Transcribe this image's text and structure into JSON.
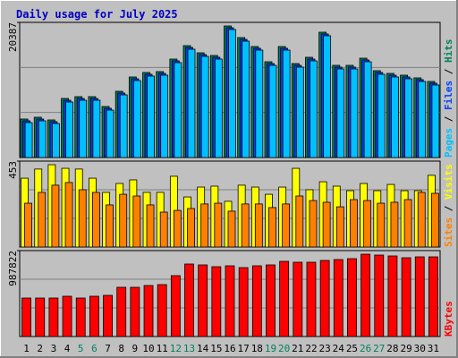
{
  "chart_data": [
    {
      "type": "bar",
      "title": "Daily usage for July 2025",
      "title_color": "#0000c0",
      "ylim": [
        0,
        20387
      ],
      "yticks": [
        20387
      ],
      "legend_separator": " / ",
      "series": [
        {
          "name": "Hits",
          "color": "#00805c",
          "values": [
            5806,
            6076,
            5671,
            8911,
            9181,
            9181,
            7696,
            9991,
            12151,
            12826,
            12961,
            14851,
            16876,
            15797,
            15392,
            19847,
            18092,
            16742,
            14446,
            16742,
            14176,
            15121,
            18902,
            13906,
            13906,
            14986,
            13096,
            12691,
            12421,
            12016,
            11476
          ]
        },
        {
          "name": "Files",
          "color": "#0040ff",
          "values": [
            5536,
            5806,
            5401,
            8641,
            8911,
            8911,
            7426,
            9721,
            11881,
            12556,
            12691,
            14581,
            16606,
            15527,
            15122,
            19577,
            17822,
            16472,
            14176,
            16472,
            13906,
            14851,
            18632,
            13636,
            13636,
            14716,
            12826,
            12421,
            12151,
            11746,
            11206
          ]
        },
        {
          "name": "Pages",
          "color": "#00c0ff",
          "values": [
            5266,
            5536,
            5131,
            8371,
            8641,
            8641,
            7156,
            9451,
            11611,
            12286,
            12421,
            14311,
            16336,
            15257,
            14852,
            19307,
            17552,
            16202,
            13906,
            16202,
            13636,
            14581,
            18362,
            13366,
            13366,
            14446,
            12556,
            12151,
            11881,
            11476,
            10936
          ]
        }
      ]
    },
    {
      "type": "bar",
      "ylim": [
        0,
        453
      ],
      "yticks": [
        453
      ],
      "legend_separator": " / ",
      "series": [
        {
          "name": "Visits",
          "color": "#ffff00",
          "values": [
            363,
            411,
            434,
            415,
            411,
            363,
            288,
            335,
            354,
            288,
            288,
            373,
            264,
            316,
            321,
            241,
            326,
            316,
            278,
            316,
            415,
            302,
            344,
            321,
            297,
            335,
            297,
            330,
            297,
            297,
            378
          ]
        },
        {
          "name": "Sites",
          "color": "#ff8000",
          "values": [
            231,
            288,
            326,
            340,
            302,
            288,
            222,
            278,
            269,
            222,
            184,
            193,
            203,
            227,
            231,
            189,
            227,
            227,
            208,
            227,
            269,
            245,
            236,
            212,
            250,
            245,
            231,
            236,
            250,
            288,
            283
          ]
        }
      ]
    },
    {
      "type": "bar",
      "ylim": [
        0,
        987822
      ],
      "yticks": [
        987822
      ],
      "categories": [
        "1",
        "2",
        "3",
        "4",
        "5",
        "6",
        "7",
        "8",
        "9",
        "10",
        "11",
        "12",
        "13",
        "14",
        "15",
        "16",
        "17",
        "18",
        "19",
        "20",
        "21",
        "22",
        "23",
        "24",
        "25",
        "26",
        "27",
        "28",
        "29",
        "30",
        "31"
      ],
      "category_colors": [
        "#000000",
        "#000000",
        "#000000",
        "#000000",
        "#00805c",
        "#00805c",
        "#000000",
        "#000000",
        "#000000",
        "#000000",
        "#000000",
        "#00805c",
        "#00805c",
        "#000000",
        "#000000",
        "#000000",
        "#000000",
        "#000000",
        "#00805c",
        "#00805c",
        "#000000",
        "#000000",
        "#000000",
        "#000000",
        "#000000",
        "#00805c",
        "#00805c",
        "#000000",
        "#000000",
        "#000000",
        "#000000"
      ],
      "series": [
        {
          "name": "KBytes",
          "color": "#ff0000",
          "values": [
            442470,
            442470,
            442470,
            463050,
            442470,
            463050,
            473340,
            565950,
            565950,
            586530,
            596820,
            699720,
            833490,
            823200,
            802620,
            812910,
            792330,
            812910,
            823200,
            864360,
            854070,
            854070,
            874650,
            884940,
            895230,
            946680,
            936390,
            926100,
            905520,
            915810,
            915810
          ]
        }
      ]
    }
  ]
}
